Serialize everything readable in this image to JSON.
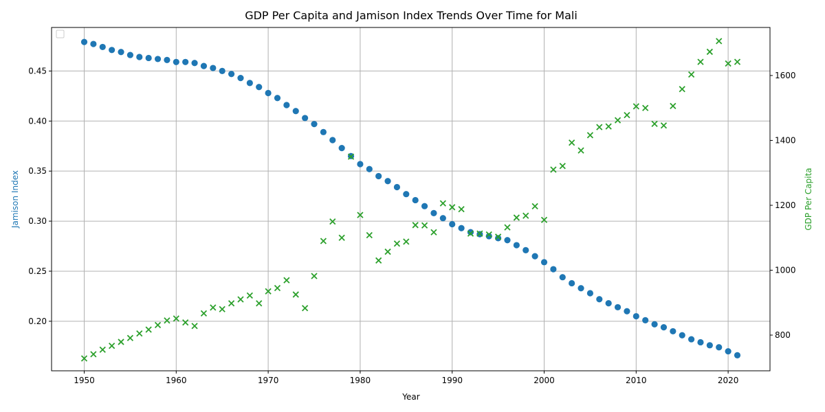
{
  "chart_data": {
    "type": "scatter",
    "title": "GDP Per Capita and Jamison Index Trends Over Time for Mali",
    "xlabel": "Year",
    "xlim": [
      1946.45,
      1924.55
    ],
    "x_ticks": [
      1950,
      1960,
      1970,
      1980,
      1990,
      2000,
      2010,
      2020
    ],
    "grid": true,
    "legend": "top-left (empty)",
    "colors": {
      "jamison": "#1f77b4",
      "gdp": "#2ca02c"
    },
    "series": [
      {
        "key": "jamison",
        "axis": "left",
        "marker": "circle",
        "ylabel": "Jamison Index",
        "ylim": [
          0.1505,
          0.4935
        ],
        "y_ticks": [
          0.2,
          0.25,
          0.3,
          0.35,
          0.4,
          0.45
        ],
        "x": [
          1950,
          1951,
          1952,
          1953,
          1954,
          1955,
          1956,
          1957,
          1958,
          1959,
          1960,
          1961,
          1962,
          1963,
          1964,
          1965,
          1966,
          1967,
          1968,
          1969,
          1970,
          1971,
          1972,
          1973,
          1974,
          1975,
          1976,
          1977,
          1978,
          1979,
          1980,
          1981,
          1982,
          1983,
          1984,
          1985,
          1986,
          1987,
          1988,
          1989,
          1990,
          1991,
          1992,
          1993,
          1994,
          1995,
          1996,
          1997,
          1998,
          1999,
          2000,
          2001,
          2002,
          2003,
          2004,
          2005,
          2006,
          2007,
          2008,
          2009,
          2010,
          2011,
          2012,
          2013,
          2014,
          2015,
          2016,
          2017,
          2018,
          2019,
          2020,
          2021
        ],
        "values": [
          0.479,
          0.477,
          0.474,
          0.471,
          0.469,
          0.466,
          0.464,
          0.463,
          0.462,
          0.461,
          0.459,
          0.459,
          0.458,
          0.455,
          0.453,
          0.45,
          0.447,
          0.443,
          0.438,
          0.434,
          0.428,
          0.423,
          0.416,
          0.41,
          0.403,
          0.397,
          0.389,
          0.381,
          0.373,
          0.365,
          0.357,
          0.352,
          0.345,
          0.34,
          0.334,
          0.327,
          0.321,
          0.315,
          0.308,
          0.303,
          0.297,
          0.293,
          0.289,
          0.287,
          0.285,
          0.283,
          0.281,
          0.276,
          0.271,
          0.265,
          0.259,
          0.252,
          0.244,
          0.238,
          0.233,
          0.228,
          0.222,
          0.218,
          0.214,
          0.21,
          0.205,
          0.201,
          0.197,
          0.194,
          0.19,
          0.186,
          0.182,
          0.179,
          0.176,
          0.174,
          0.17,
          0.166
        ]
      },
      {
        "key": "gdp",
        "axis": "right",
        "marker": "x",
        "ylabel": "GDP Per Capita",
        "ylim": [
          690,
          1748
        ],
        "y_ticks": [
          800,
          1000,
          1200,
          1400,
          1600
        ],
        "x": [
          1950,
          1951,
          1952,
          1953,
          1954,
          1955,
          1956,
          1957,
          1958,
          1959,
          1960,
          1961,
          1962,
          1963,
          1964,
          1965,
          1966,
          1967,
          1968,
          1969,
          1970,
          1971,
          1972,
          1973,
          1974,
          1975,
          1976,
          1977,
          1978,
          1979,
          1980,
          1981,
          1982,
          1983,
          1984,
          1985,
          1986,
          1987,
          1988,
          1989,
          1990,
          1991,
          1992,
          1993,
          1994,
          1995,
          1996,
          1997,
          1998,
          1999,
          2000,
          2001,
          2002,
          2003,
          2004,
          2005,
          2006,
          2007,
          2008,
          2009,
          2010,
          2011,
          2012,
          2013,
          2014,
          2015,
          2016,
          2017,
          2018,
          2019,
          2020,
          2021
        ],
        "values": [
          728,
          741,
          755,
          767,
          779,
          791,
          805,
          817,
          831,
          845,
          851,
          839,
          828,
          867,
          885,
          880,
          898,
          910,
          922,
          898,
          935,
          945,
          969,
          925,
          883,
          982,
          1090,
          1150,
          1100,
          1350,
          1170,
          1108,
          1030,
          1057,
          1082,
          1088,
          1139,
          1138,
          1117,
          1206,
          1194,
          1188,
          1113,
          1113,
          1110,
          1103,
          1132,
          1162,
          1168,
          1197,
          1155,
          1310,
          1321,
          1393,
          1369,
          1416,
          1441,
          1443,
          1462,
          1478,
          1505,
          1500,
          1451,
          1446,
          1506,
          1558,
          1603,
          1642,
          1673,
          1706,
          1637,
          1642
        ]
      }
    ]
  }
}
